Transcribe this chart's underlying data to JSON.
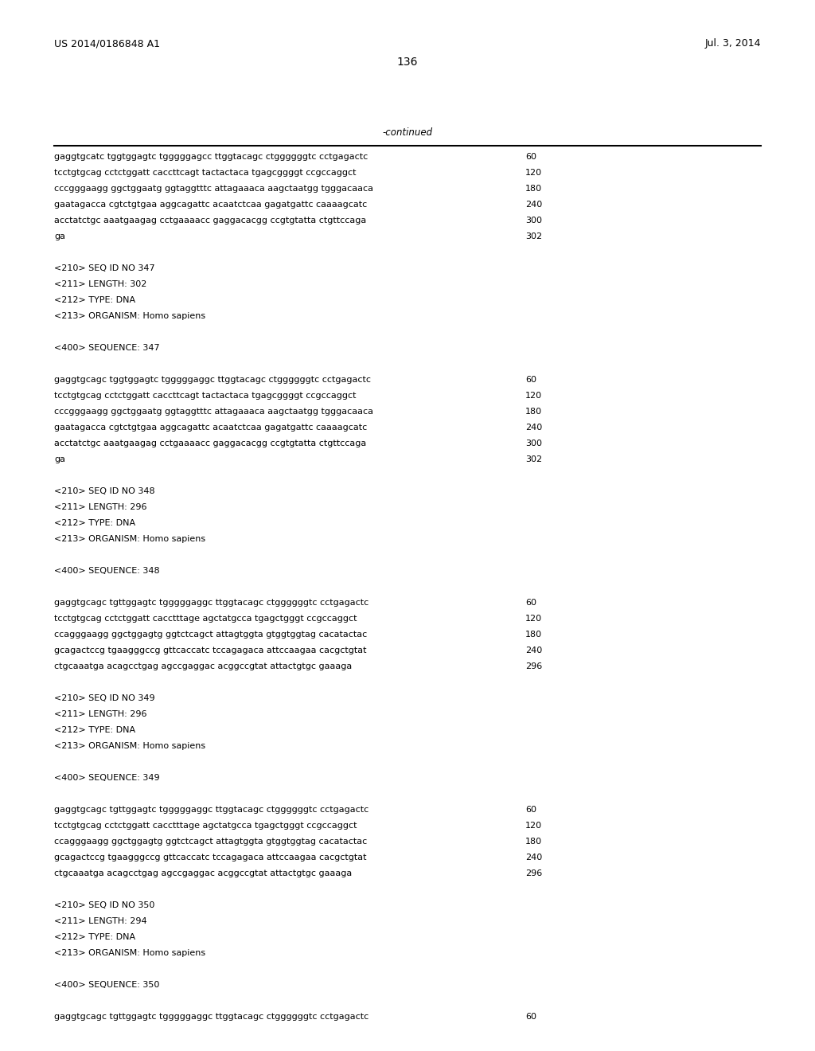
{
  "patent_left": "US 2014/0186848 A1",
  "patent_right": "Jul. 3, 2014",
  "page_number": "136",
  "continued_label": "-continued",
  "background_color": "#ffffff",
  "text_color": "#000000",
  "content_lines": [
    [
      "gaggtgcatc tggtggagtc tgggggagcc ttggtacagc ctggggggtc cctgagactc",
      "60"
    ],
    [
      "tcctgtgcag cctctggatt caccttcagt tactactaca tgagcggggt ccgccaggct",
      "120"
    ],
    [
      "cccgggaagg ggctggaatg ggtaggtttc attagaaaca aagctaatgg tgggacaaca",
      "180"
    ],
    [
      "gaatagacca cgtctgtgaa aggcagattc acaatctcaa gagatgattc caaaagcatc",
      "240"
    ],
    [
      "acctatctgc aaatgaagag cctgaaaacc gaggacacgg ccgtgtatta ctgttccaga",
      "300"
    ],
    [
      "ga",
      "302"
    ],
    [
      "",
      ""
    ],
    [
      "<210> SEQ ID NO 347",
      ""
    ],
    [
      "<211> LENGTH: 302",
      ""
    ],
    [
      "<212> TYPE: DNA",
      ""
    ],
    [
      "<213> ORGANISM: Homo sapiens",
      ""
    ],
    [
      "",
      ""
    ],
    [
      "<400> SEQUENCE: 347",
      ""
    ],
    [
      "",
      ""
    ],
    [
      "gaggtgcagc tggtggagtc tgggggaggc ttggtacagc ctggggggtc cctgagactc",
      "60"
    ],
    [
      "tcctgtgcag cctctggatt caccttcagt tactactaca tgagcggggt ccgccaggct",
      "120"
    ],
    [
      "cccgggaagg ggctggaatg ggtaggtttc attagaaaca aagctaatgg tgggacaaca",
      "180"
    ],
    [
      "gaatagacca cgtctgtgaa aggcagattc acaatctcaa gagatgattc caaaagcatc",
      "240"
    ],
    [
      "acctatctgc aaatgaagag cctgaaaacc gaggacacgg ccgtgtatta ctgttccaga",
      "300"
    ],
    [
      "ga",
      "302"
    ],
    [
      "",
      ""
    ],
    [
      "<210> SEQ ID NO 348",
      ""
    ],
    [
      "<211> LENGTH: 296",
      ""
    ],
    [
      "<212> TYPE: DNA",
      ""
    ],
    [
      "<213> ORGANISM: Homo sapiens",
      ""
    ],
    [
      "",
      ""
    ],
    [
      "<400> SEQUENCE: 348",
      ""
    ],
    [
      "",
      ""
    ],
    [
      "gaggtgcagc tgttggagtc tgggggaggc ttggtacagc ctggggggtc cctgagactc",
      "60"
    ],
    [
      "tcctgtgcag cctctggatt cacctttage agctatgcca tgagctgggt ccgccaggct",
      "120"
    ],
    [
      "ccagggaagg ggctggagtg ggtctcagct attagtggta gtggtggtag cacatactac",
      "180"
    ],
    [
      "gcagactccg tgaagggccg gttcaccatc tccagagaca attccaagaa cacgctgtat",
      "240"
    ],
    [
      "ctgcaaatga acagcctgag agccgaggac acggccgtat attactgtgc gaaaga",
      "296"
    ],
    [
      "",
      ""
    ],
    [
      "<210> SEQ ID NO 349",
      ""
    ],
    [
      "<211> LENGTH: 296",
      ""
    ],
    [
      "<212> TYPE: DNA",
      ""
    ],
    [
      "<213> ORGANISM: Homo sapiens",
      ""
    ],
    [
      "",
      ""
    ],
    [
      "<400> SEQUENCE: 349",
      ""
    ],
    [
      "",
      ""
    ],
    [
      "gaggtgcagc tgttggagtc tgggggaggc ttggtacagc ctggggggtc cctgagactc",
      "60"
    ],
    [
      "tcctgtgcag cctctggatt cacctttage agctatgcca tgagctgggt ccgccaggct",
      "120"
    ],
    [
      "ccagggaagg ggctggagtg ggtctcagct attagtggta gtggtggtag cacatactac",
      "180"
    ],
    [
      "gcagactccg tgaagggccg gttcaccatc tccagagaca attccaagaa cacgctgtat",
      "240"
    ],
    [
      "ctgcaaatga acagcctgag agccgaggac acggccgtat attactgtgc gaaaga",
      "296"
    ],
    [
      "",
      ""
    ],
    [
      "<210> SEQ ID NO 350",
      ""
    ],
    [
      "<211> LENGTH: 294",
      ""
    ],
    [
      "<212> TYPE: DNA",
      ""
    ],
    [
      "<213> ORGANISM: Homo sapiens",
      ""
    ],
    [
      "",
      ""
    ],
    [
      "<400> SEQUENCE: 350",
      ""
    ],
    [
      "",
      ""
    ],
    [
      "gaggtgcagc tgttggagtc tgggggaggc ttggtacagc ctggggggtc cctgagactc",
      "60"
    ]
  ]
}
